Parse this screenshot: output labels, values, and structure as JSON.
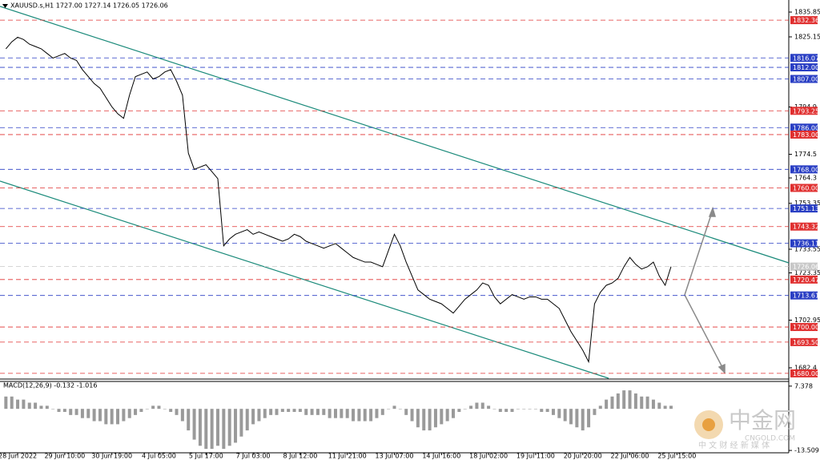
{
  "chart_data": [
    {
      "type": "line",
      "title": "XAUUSD.s,H1  1727.00 1727.14 1726.05 1726.06",
      "color": "#000000",
      "values": [
        1820,
        1823,
        1825,
        1824,
        1822,
        1821,
        1820,
        1818,
        1816,
        1817,
        1818,
        1816,
        1815,
        1811,
        1808,
        1805,
        1803,
        1799,
        1795,
        1792,
        1790,
        1800,
        1808,
        1809,
        1810,
        1807,
        1808,
        1810,
        1811,
        1806,
        1800,
        1775,
        1768,
        1769,
        1770,
        1767,
        1764,
        1735,
        1738,
        1740,
        1741,
        1742,
        1740,
        1741,
        1740,
        1739,
        1738,
        1737,
        1738,
        1740,
        1739,
        1737,
        1736,
        1735,
        1734,
        1735,
        1736,
        1734,
        1732,
        1730,
        1729,
        1728,
        1728,
        1727,
        1726,
        1733,
        1740,
        1735,
        1728,
        1722,
        1716,
        1714,
        1712,
        1711,
        1710,
        1708,
        1706,
        1709,
        1712,
        1714,
        1716,
        1719,
        1718,
        1713,
        1710,
        1712,
        1714,
        1713,
        1712,
        1713,
        1713,
        1712,
        1712,
        1710,
        1708,
        1703,
        1698,
        1694,
        1690,
        1685,
        1710,
        1715,
        1718,
        1719,
        1721,
        1726,
        1730,
        1727,
        1725,
        1726,
        1728,
        1722,
        1718,
        1726.06
      ],
      "xlim": [
        -1,
        133
      ],
      "xticks": [
        {
          "value": 2,
          "label": "28 Jun 2022"
        },
        {
          "value": 10,
          "label": "29 Jun 10:00"
        },
        {
          "value": 18,
          "label": "30 Jun 19:00"
        },
        {
          "value": 26,
          "label": "4 Jul 05:00"
        },
        {
          "value": 34,
          "label": "5 Jul 17:00"
        },
        {
          "value": 42,
          "label": "7 Jul 03:00"
        },
        {
          "value": 50,
          "label": "8 Jul 12:00"
        },
        {
          "value": 58,
          "label": "11 Jul 21:00"
        },
        {
          "value": 66,
          "label": "13 Jul 07:00"
        },
        {
          "value": 74,
          "label": "14 Jul 16:00"
        },
        {
          "value": 82,
          "label": "18 Jul 02:00"
        },
        {
          "value": 90,
          "label": "19 Jul 11:00"
        },
        {
          "value": 98,
          "label": "20 Jul 20:00"
        },
        {
          "value": 106,
          "label": "22 Jul 06:00"
        },
        {
          "value": 114,
          "label": "25 Jul 15:00"
        }
      ],
      "ylim": [
        1677.55,
        1841.05
      ],
      "yticks": [
        1835.85,
        1825.15,
        1794.9,
        1774.5,
        1764.3,
        1753.35,
        1733.55,
        1723.35,
        1702.95,
        1682.4
      ],
      "levels": [
        {
          "value": 1832.36,
          "color": "#e03030"
        },
        {
          "value": 1816.07,
          "color": "#2a3fc4"
        },
        {
          "value": 1812,
          "label": "1812.00",
          "color": "#2a3fc4"
        },
        {
          "value": 1807,
          "label": "1807.00",
          "color": "#2a3fc4"
        },
        {
          "value": 1793.25,
          "color": "#e03030"
        },
        {
          "value": 1786,
          "label": "1786.00",
          "color": "#2a3fc4"
        },
        {
          "value": 1783,
          "label": "1783.00",
          "color": "#e03030"
        },
        {
          "value": 1768,
          "label": "1768.00",
          "color": "#2a3fc4"
        },
        {
          "value": 1760,
          "label": "1760.00",
          "color": "#e03030"
        },
        {
          "value": 1751.13,
          "color": "#2a3fc4"
        },
        {
          "value": 1743.32,
          "color": "#e03030"
        },
        {
          "value": 1736.11,
          "color": "#2a3fc4"
        },
        {
          "value": 1726.06,
          "color": "#c8c8c8"
        },
        {
          "value": 1720.47,
          "color": "#e03030"
        },
        {
          "value": 1713.61,
          "color": "#2a3fc4"
        },
        {
          "value": 1700,
          "label": "1700.00",
          "color": "#e03030"
        },
        {
          "value": 1693.5,
          "label": "1693.50",
          "color": "#e03030"
        },
        {
          "value": 1680,
          "label": "1680.00",
          "color": "#e03030"
        }
      ]
    },
    {
      "type": "bar",
      "title": "MACD(12,26,9) -0.132 -1.016",
      "color": "#9a9a9a",
      "values": [
        4,
        4,
        3,
        3,
        2,
        2,
        1,
        1,
        0,
        -1,
        -1,
        -2,
        -2,
        -3,
        -3,
        -4,
        -4,
        -5,
        -5,
        -5,
        -4,
        -3,
        -2,
        -1,
        0,
        1,
        1,
        0,
        -1,
        -2,
        -4,
        -7,
        -10,
        -12,
        -13,
        -13,
        -12,
        -13,
        -12,
        -11,
        -9,
        -7,
        -5,
        -4,
        -3,
        -2,
        -2,
        -1,
        -1,
        -1,
        -1,
        -2,
        -2,
        -2,
        -2,
        -3,
        -3,
        -3,
        -3,
        -4,
        -4,
        -4,
        -4,
        -3,
        -2,
        0,
        1,
        0,
        -2,
        -4,
        -6,
        -7,
        -7,
        -6,
        -5,
        -4,
        -3,
        -1,
        0,
        1,
        2,
        2,
        1,
        0,
        -1,
        -1,
        -1,
        0,
        0,
        0,
        0,
        -1,
        -1,
        -2,
        -3,
        -4,
        -5,
        -6,
        -7,
        -6,
        -2,
        1,
        3,
        4,
        5,
        6,
        6,
        5,
        4,
        4,
        3,
        2,
        1,
        1
      ],
      "ylim": [
        -14.27,
        8.89
      ],
      "yticks": [
        7.378,
        -13.509
      ]
    }
  ],
  "watermark": {
    "brand": "中金网",
    "site": "CNGOLD.COM",
    "slogan": "中 文 财 经 新 媒 体"
  }
}
